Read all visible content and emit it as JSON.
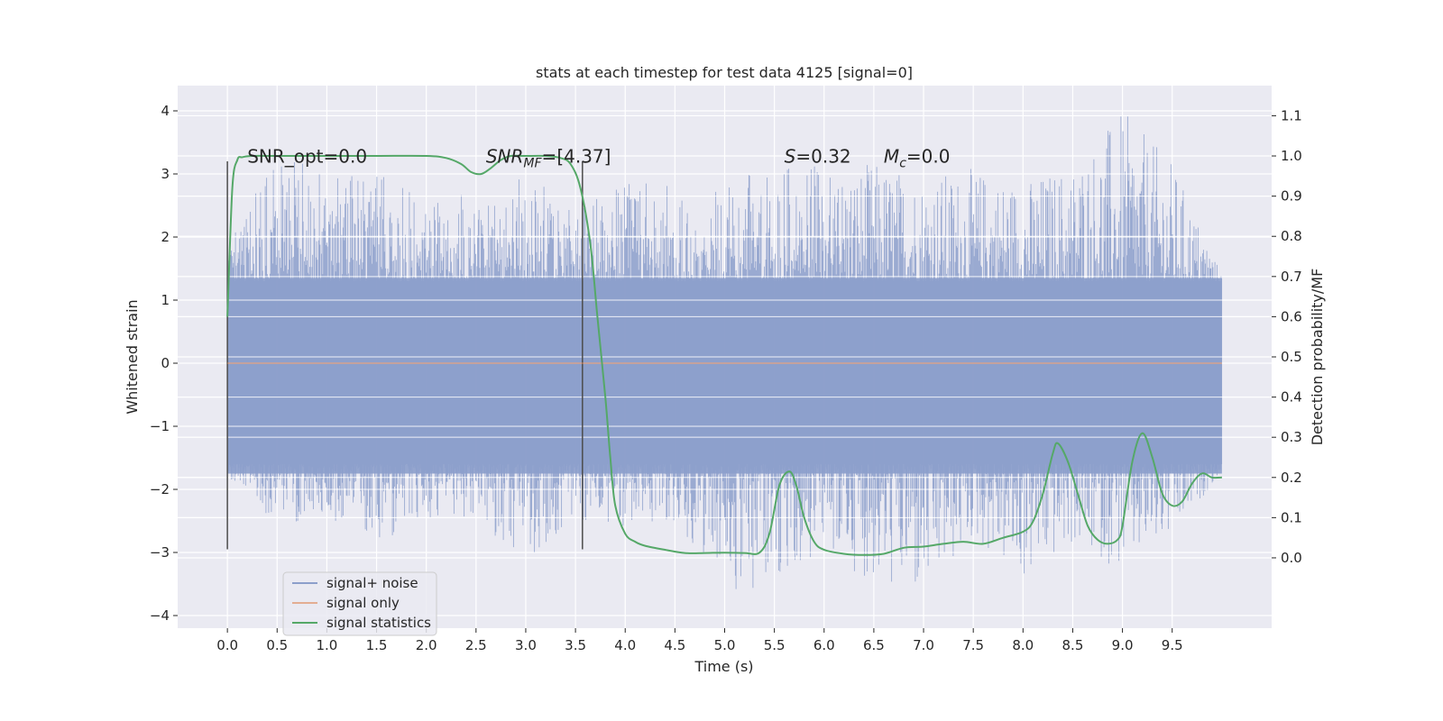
{
  "chart_data": {
    "type": "line",
    "title": "stats at each timestep for test data 4125 [signal=0]",
    "xlabel": "Time (s)",
    "ylabel_left": "Whitened strain",
    "ylabel_right": "Detection probability/MF",
    "xlim": [
      -0.5,
      10.5
    ],
    "ylim_left": [
      -4.2,
      4.4
    ],
    "ylim_right": [
      -0.175,
      1.175
    ],
    "x_ticks": [
      0.0,
      0.5,
      1.0,
      1.5,
      2.0,
      2.5,
      3.0,
      3.5,
      4.0,
      4.5,
      5.0,
      5.5,
      6.0,
      6.5,
      7.0,
      7.5,
      8.0,
      8.5,
      9.0,
      9.5
    ],
    "x_tick_labels": [
      "0.0",
      "0.5",
      "1.0",
      "1.5",
      "2.0",
      "2.5",
      "3.0",
      "3.5",
      "4.0",
      "4.5",
      "5.0",
      "5.5",
      "6.0",
      "6.5",
      "7.0",
      "7.5",
      "8.0",
      "8.5",
      "9.0",
      "9.5"
    ],
    "y_ticks_left": [
      -4,
      -3,
      -2,
      -1,
      0,
      1,
      2,
      3,
      4
    ],
    "y_tick_labels_left": [
      "−4",
      "−3",
      "−2",
      "−1",
      "0",
      "1",
      "2",
      "3",
      "4"
    ],
    "y_ticks_right": [
      0.0,
      0.1,
      0.2,
      0.3,
      0.4,
      0.5,
      0.6,
      0.7,
      0.8,
      0.9,
      1.0,
      1.1
    ],
    "y_tick_labels_right": [
      "0.0",
      "0.1",
      "0.2",
      "0.3",
      "0.4",
      "0.5",
      "0.6",
      "0.7",
      "0.8",
      "0.9",
      "1.0",
      "1.1"
    ],
    "grid": true,
    "legend_position": "lower-left",
    "series": [
      {
        "name": "signal+ noise",
        "axis": "left",
        "color": "#8c9fcb",
        "style": "dense noise band, bulk within approx ±1.3, peaks to about ±4",
        "x_range": [
          0.0,
          10.0
        ],
        "envelope": [
          [
            0.0,
            -1.8,
            1.9
          ],
          [
            0.5,
            -2.6,
            3.3
          ],
          [
            1.0,
            -2.5,
            3.1
          ],
          [
            1.5,
            -2.8,
            3.0
          ],
          [
            2.0,
            -2.6,
            2.9
          ],
          [
            2.5,
            -2.4,
            2.6
          ],
          [
            3.0,
            -3.3,
            3.0
          ],
          [
            3.5,
            -2.5,
            2.5
          ],
          [
            4.0,
            -2.7,
            2.9
          ],
          [
            4.5,
            -2.5,
            2.8
          ],
          [
            5.0,
            -3.6,
            2.8
          ],
          [
            5.5,
            -3.6,
            3.2
          ],
          [
            6.0,
            -3.0,
            3.1
          ],
          [
            6.5,
            -3.5,
            3.2
          ],
          [
            7.0,
            -3.8,
            3.0
          ],
          [
            7.5,
            -2.8,
            3.1
          ],
          [
            8.0,
            -3.5,
            2.9
          ],
          [
            8.5,
            -2.9,
            3.2
          ],
          [
            9.0,
            -3.3,
            4.0
          ],
          [
            9.5,
            -2.8,
            3.2
          ],
          [
            10.0,
            -1.7,
            1.4
          ]
        ]
      },
      {
        "name": "signal only",
        "axis": "left",
        "color": "#dd8452",
        "x": [
          0.0,
          10.0
        ],
        "y": [
          0.0,
          0.0
        ]
      },
      {
        "name": "signal statistics",
        "axis": "right",
        "color": "#55a868",
        "x": [
          0.0,
          0.05,
          0.1,
          0.15,
          0.25,
          0.5,
          1.0,
          1.5,
          2.0,
          2.2,
          2.35,
          2.45,
          2.55,
          2.65,
          2.75,
          2.85,
          3.0,
          3.2,
          3.35,
          3.45,
          3.55,
          3.65,
          3.72,
          3.8,
          3.85,
          3.9,
          4.0,
          4.1,
          4.2,
          4.4,
          4.6,
          4.8,
          5.0,
          5.2,
          5.35,
          5.45,
          5.55,
          5.65,
          5.72,
          5.8,
          5.9,
          6.0,
          6.2,
          6.4,
          6.6,
          6.8,
          7.0,
          7.2,
          7.4,
          7.6,
          7.8,
          8.0,
          8.1,
          8.2,
          8.3,
          8.35,
          8.45,
          8.55,
          8.65,
          8.75,
          8.85,
          8.95,
          9.0,
          9.1,
          9.2,
          9.3,
          9.4,
          9.5,
          9.6,
          9.7,
          9.8,
          9.9,
          10.0
        ],
        "y": [
          0.6,
          0.92,
          0.99,
          0.997,
          1.0,
          1.0,
          1.0,
          1.0,
          1.0,
          0.995,
          0.98,
          0.96,
          0.955,
          0.97,
          0.99,
          1.0,
          1.0,
          1.0,
          0.995,
          0.98,
          0.92,
          0.78,
          0.6,
          0.4,
          0.25,
          0.13,
          0.06,
          0.04,
          0.03,
          0.02,
          0.012,
          0.012,
          0.013,
          0.012,
          0.013,
          0.06,
          0.18,
          0.215,
          0.18,
          0.1,
          0.04,
          0.02,
          0.01,
          0.007,
          0.01,
          0.025,
          0.028,
          0.035,
          0.04,
          0.035,
          0.05,
          0.065,
          0.09,
          0.16,
          0.26,
          0.285,
          0.24,
          0.16,
          0.08,
          0.045,
          0.035,
          0.045,
          0.08,
          0.24,
          0.31,
          0.25,
          0.16,
          0.13,
          0.14,
          0.185,
          0.21,
          0.2,
          0.2
        ]
      }
    ],
    "vlines": [
      {
        "x": 0.0,
        "ymin": -2.95,
        "ymax": 3.2,
        "color": "#4c4c4c"
      },
      {
        "x": 3.57,
        "ymin": -2.95,
        "ymax": 3.2,
        "color": "#4c4c4c"
      }
    ],
    "annotations": [
      {
        "x": 0.2,
        "y": 3.18,
        "segments": [
          {
            "t": "SNR_opt=0.0"
          }
        ]
      },
      {
        "x": 2.6,
        "y": 3.18,
        "segments": [
          {
            "t": "SNR",
            "italic": true
          },
          {
            "t": "MF",
            "italic": true,
            "sub": true
          },
          {
            "t": "=[4.37]",
            "italic": true,
            "partial_italic_first": 1
          }
        ]
      },
      {
        "x": 5.6,
        "y": 3.18,
        "segments": [
          {
            "t": "S",
            "italic": true
          },
          {
            "t": "=0.32"
          }
        ]
      },
      {
        "x": 6.6,
        "y": 3.18,
        "segments": [
          {
            "t": "M",
            "italic": true
          },
          {
            "t": "c",
            "italic": true,
            "sub": true
          },
          {
            "t": "=0.0"
          }
        ]
      }
    ]
  }
}
